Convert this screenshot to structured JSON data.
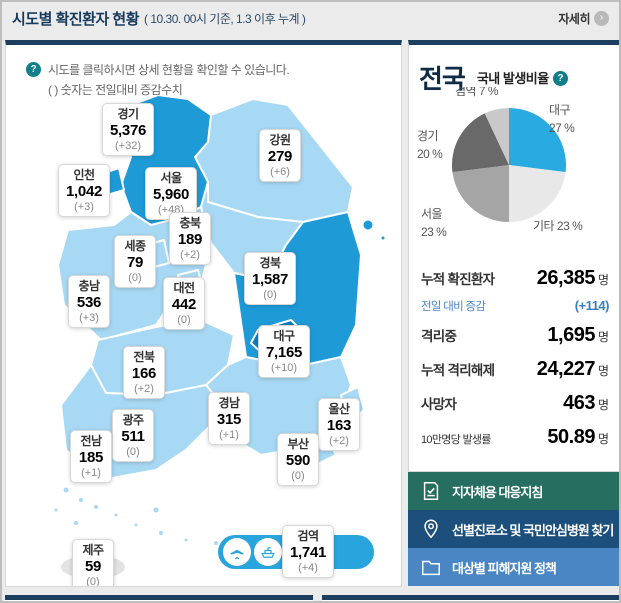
{
  "header": {
    "title": "시도별 확진환자 현황",
    "subtitle": "( 10.30. 00시 기준, 1.3 이후 누계 )",
    "more_label": "자세히",
    "more_arrow": "›"
  },
  "map_panel": {
    "help_icon": "?",
    "help_line1": "시도를 클릭하시면 상세 현황을 확인할 수 있습니다.",
    "help_line2": "( ) 숫자는 전일대비 증감수치",
    "regions": [
      {
        "id": "gyeonggi",
        "name": "경기",
        "value": "5,376",
        "change": "(+32)"
      },
      {
        "id": "gangwon",
        "name": "강원",
        "value": "279",
        "change": "(+6)"
      },
      {
        "id": "incheon",
        "name": "인천",
        "value": "1,042",
        "change": "(+3)"
      },
      {
        "id": "seoul",
        "name": "서울",
        "value": "5,960",
        "change": "(+48)"
      },
      {
        "id": "chungbuk",
        "name": "충북",
        "value": "189",
        "change": "(+2)"
      },
      {
        "id": "sejong",
        "name": "세종",
        "value": "79",
        "change": "(0)"
      },
      {
        "id": "gyeongbuk",
        "name": "경북",
        "value": "1,587",
        "change": "(0)"
      },
      {
        "id": "chungnam",
        "name": "충남",
        "value": "536",
        "change": "(+3)"
      },
      {
        "id": "daejeon",
        "name": "대전",
        "value": "442",
        "change": "(0)"
      },
      {
        "id": "daegu",
        "name": "대구",
        "value": "7,165",
        "change": "(+10)"
      },
      {
        "id": "jeonbuk",
        "name": "전북",
        "value": "166",
        "change": "(+2)"
      },
      {
        "id": "gyeongnam",
        "name": "경남",
        "value": "315",
        "change": "(+1)"
      },
      {
        "id": "ulsan",
        "name": "울산",
        "value": "163",
        "change": "(+2)"
      },
      {
        "id": "gwangju",
        "name": "광주",
        "value": "511",
        "change": "(0)"
      },
      {
        "id": "busan",
        "name": "부산",
        "value": "590",
        "change": "(0)"
      },
      {
        "id": "jeonnam",
        "name": "전남",
        "value": "185",
        "change": "(+1)"
      },
      {
        "id": "jeju",
        "name": "제주",
        "value": "59",
        "change": "(0)"
      },
      {
        "id": "quarantine",
        "name": "검역",
        "value": "1,741",
        "change": "(+4)"
      }
    ]
  },
  "national_panel": {
    "title": "전국",
    "pie_title": "국내 발생비율",
    "pie_help_icon": "?",
    "stats": [
      {
        "label": "누적 확진환자",
        "value": "26,385",
        "unit": "명",
        "style": "normal"
      },
      {
        "label": "전일 대비 증감",
        "value": "(+114)",
        "unit": "",
        "style": "accent"
      },
      {
        "label": "격리중",
        "value": "1,695",
        "unit": "명",
        "style": "normal"
      },
      {
        "label": "누적 격리해제",
        "value": "24,227",
        "unit": "명",
        "style": "normal"
      },
      {
        "label": "사망자",
        "value": "463",
        "unit": "명",
        "style": "normal"
      },
      {
        "label": "10만명당 발생률",
        "value": "50.89",
        "unit": "명",
        "style": "small"
      }
    ],
    "buttons": [
      {
        "label": "지자체용 대응지침",
        "icon": "document-check-icon",
        "color": "#266e60"
      },
      {
        "label": "선별진료소 및 국민안심병원 찾기",
        "icon": "map-pin-icon",
        "color": "#1d4f7c"
      },
      {
        "label": "대상별 피해지원 정책",
        "icon": "folder-icon",
        "color": "#4a86c4"
      }
    ]
  },
  "chart_data": {
    "type": "pie",
    "title": "국내 발생비율",
    "labels": [
      "대구",
      "기타",
      "서울",
      "경기",
      "검역"
    ],
    "values": [
      27,
      23,
      23,
      20,
      7
    ],
    "colors": [
      "#29abe2",
      "#e8e8e8",
      "#a5a5a5",
      "#696969",
      "#c9c9c9"
    ],
    "unit": "%",
    "start_angle_deg": -90,
    "direction": "clockwise"
  },
  "colors": {
    "panel_top_border": "#1d3e5e",
    "map_light_blue": "#a8d9f4",
    "map_medium_blue": "#1e9bd7",
    "map_dark_blue": "#0b7dc1",
    "map_jeju_gray": "#e3e3e3",
    "quarantine_pill": "#2aa4dc",
    "accent_blue": "#3a7ebf",
    "help_teal": "#0f7f8b"
  }
}
